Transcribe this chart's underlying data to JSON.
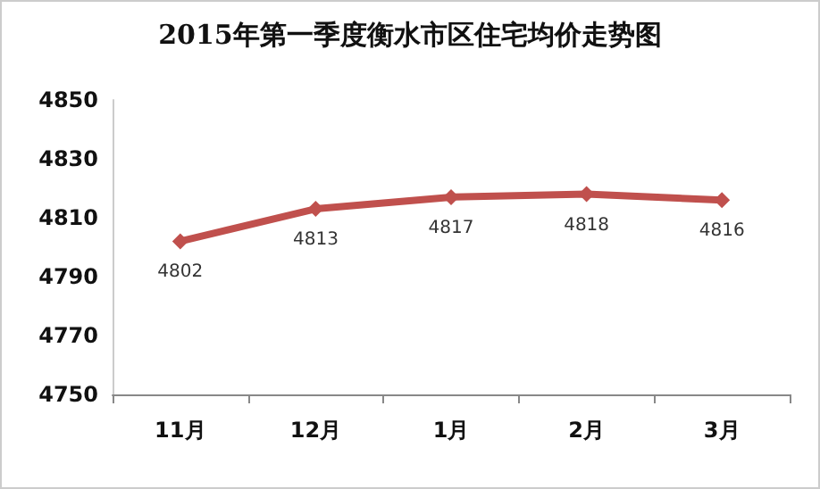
{
  "chart_data": {
    "type": "line",
    "title": "2015年第一季度衡水市区住宅均价走势图",
    "categories": [
      "11月",
      "12月",
      "1月",
      "2月",
      "3月"
    ],
    "series": [
      {
        "color": "#c0504d",
        "values": [
          4802,
          4813,
          4817,
          4818,
          4816
        ]
      }
    ],
    "ylim": [
      4750,
      4850
    ],
    "yticks": [
      4750,
      4770,
      4790,
      4810,
      4830,
      4850
    ],
    "data_labels": true,
    "marker": "diamond",
    "grid": false
  }
}
